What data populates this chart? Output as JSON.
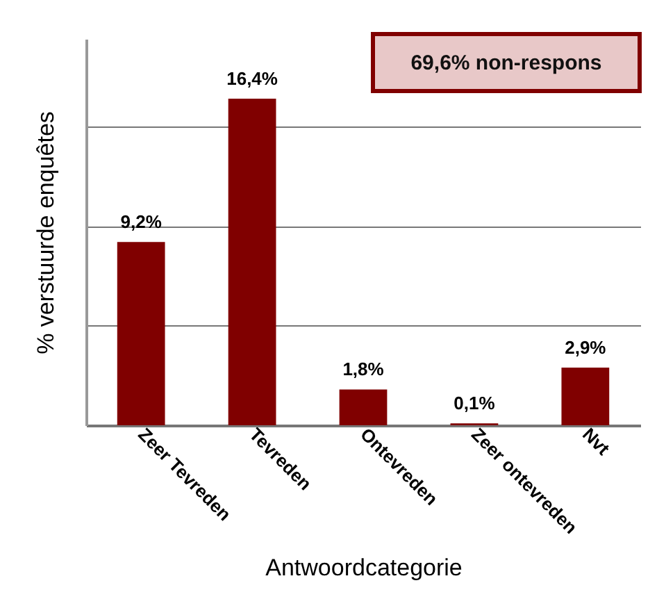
{
  "chart_data": {
    "type": "bar",
    "xlabel": "Antwoordcategorie",
    "ylabel": "% verstuurde enquêtes",
    "categories": [
      "Zeer Tevreden",
      "Tevreden",
      "Ontevreden",
      "Zeer ontevreden",
      "Nvt"
    ],
    "values": [
      9.2,
      16.4,
      1.8,
      0.1,
      2.9
    ],
    "value_labels": [
      "9,2%",
      "16,4%",
      "1,8%",
      "0,1%",
      "2,9%"
    ],
    "color": "#800000",
    "ylim": [
      0,
      19.4
    ],
    "yticks": [
      {
        "value": 0,
        "label": null
      },
      {
        "value": 5,
        "label": null
      },
      {
        "value": 10,
        "label": null
      },
      {
        "value": 15,
        "label": null
      }
    ],
    "grid": "y",
    "annotations": [
      "69,6% non-respons"
    ]
  }
}
